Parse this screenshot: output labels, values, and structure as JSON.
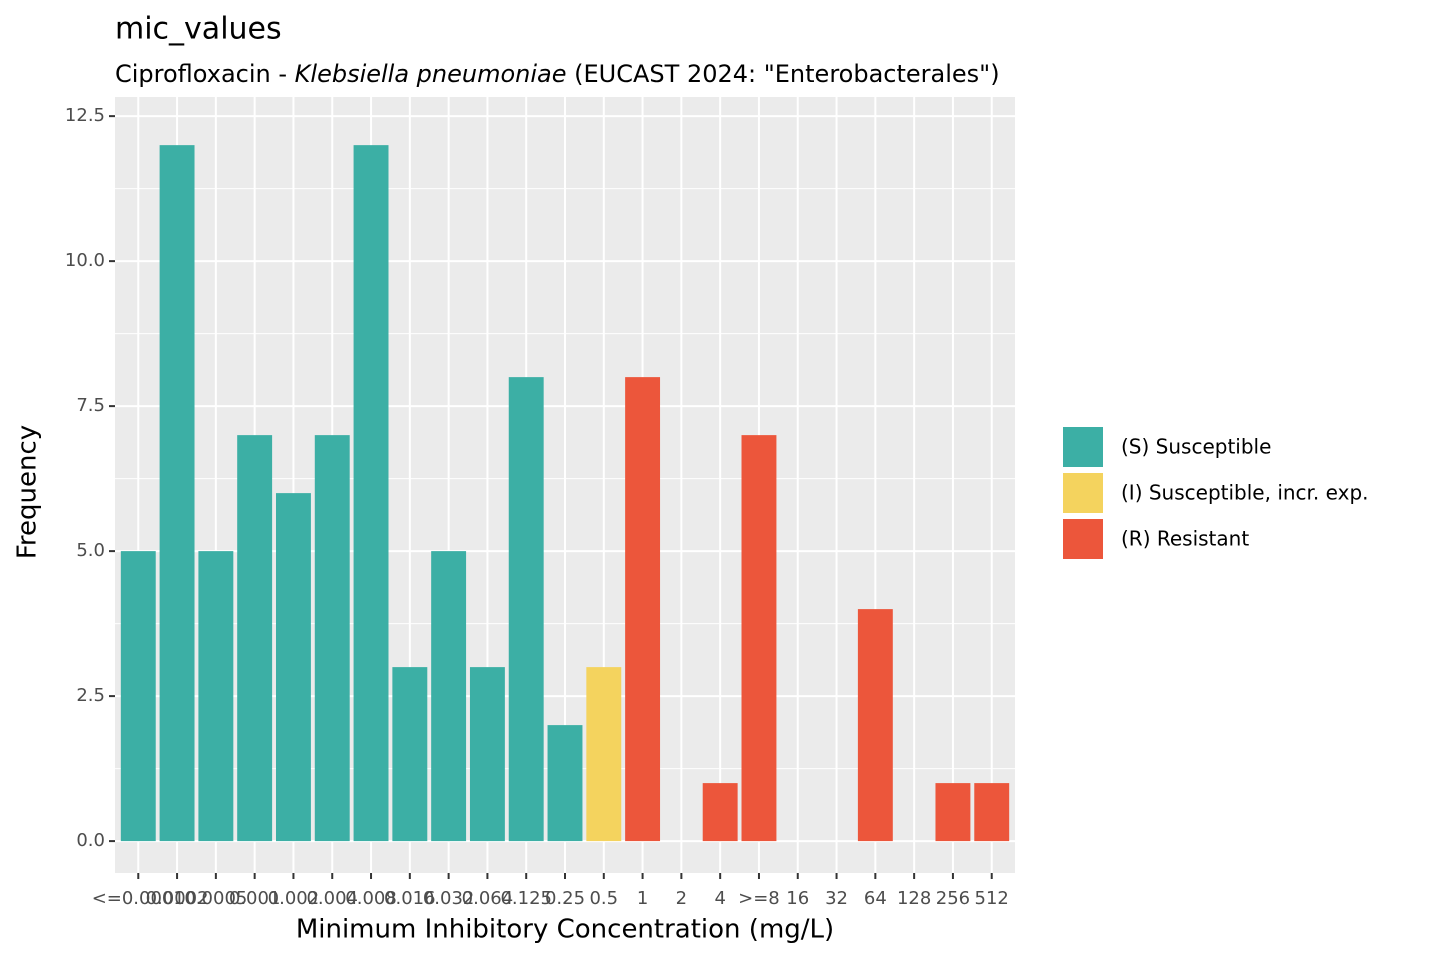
{
  "chart_data": {
    "type": "bar",
    "title": "mic_values",
    "subtitle": [
      "Ciprofloxacin - ",
      "Klebsiella pneumoniae",
      " (EUCAST 2024: \"Enterobacterales\")"
    ],
    "x_label": "Minimum Inhibitory Concentration (mg/L)",
    "y_label": "Frequency",
    "categories": [
      "<=0.0001",
      "0.0002",
      "0.0005",
      "0.001",
      "0.002",
      "0.004",
      "0.008",
      "0.016",
      "0.032",
      "0.064",
      "0.125",
      "0.25",
      "0.5",
      "1",
      "2",
      "4",
      ">=8",
      "16",
      "32",
      "64",
      "128",
      "256",
      "512"
    ],
    "series": [
      {
        "name": "(S) Susceptible",
        "color": "#3cafa5",
        "values": [
          5,
          12,
          5,
          7,
          6,
          7,
          12,
          3,
          5,
          3,
          8,
          2,
          null,
          null,
          null,
          null,
          null,
          null,
          null,
          null,
          null,
          null,
          null
        ]
      },
      {
        "name": "(I) Susceptible, incr. exp.",
        "color": "#f4d35e",
        "values": [
          null,
          null,
          null,
          null,
          null,
          null,
          null,
          null,
          null,
          null,
          null,
          null,
          3,
          null,
          null,
          null,
          null,
          null,
          null,
          null,
          null,
          null,
          null
        ]
      },
      {
        "name": "(R) Resistant",
        "color": "#ec563b",
        "values": [
          null,
          null,
          null,
          null,
          null,
          null,
          null,
          null,
          null,
          null,
          null,
          null,
          null,
          8,
          0,
          1,
          7,
          0,
          0,
          4,
          0,
          1,
          1
        ]
      }
    ],
    "ylim": [
      -0.55,
      12.83
    ],
    "yticks": [
      {
        "value": 0,
        "label": "0.0"
      },
      2.5,
      {
        "value": 5,
        "label": "5.0"
      },
      7.5,
      {
        "value": 10,
        "label": "10.0"
      },
      12.5
    ],
    "grid": true
  }
}
